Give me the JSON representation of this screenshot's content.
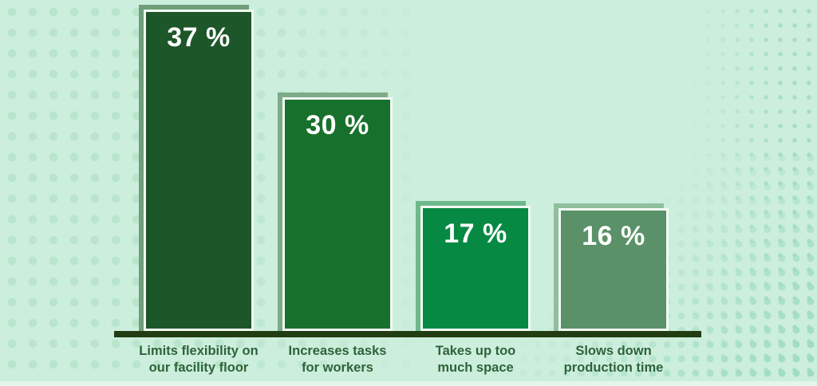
{
  "chart_data": {
    "type": "bar",
    "title": "",
    "unit": "%",
    "categories": [
      "Limits flexibility on our facility floor",
      "Increases tasks for workers",
      "Takes up too much space",
      "Slows down production time"
    ],
    "values": [
      37,
      30,
      17,
      16
    ],
    "bars": [
      {
        "value_label": "37 %",
        "line1": "Limits flexibility on",
        "line2": "our facility floor",
        "fill": "#1d5628",
        "shadow": "#6f9e7a"
      },
      {
        "value_label": "30 %",
        "line1": "Increases tasks",
        "line2": "for workers",
        "fill": "#17712c",
        "shadow": "#7cab87"
      },
      {
        "value_label": "17 %",
        "line1": "Takes up too",
        "line2": "much space",
        "fill": "#068943",
        "shadow": "#6db98c"
      },
      {
        "value_label": "16 %",
        "line1": "Slows down",
        "line2": "production time",
        "fill": "#5a9168",
        "shadow": "#8fbf9c"
      }
    ],
    "layout": {
      "grid": false,
      "legend": false,
      "value_label_position": "inside-top",
      "category_label_position": "below-axis",
      "ylim": [
        0,
        40
      ]
    },
    "palette": {
      "background": "#cceedd",
      "dot_pattern_left": "#b9e5cd",
      "dot_pattern_right": "#a5ddc3",
      "bar_border": "#f2faf3",
      "axis_line": "#213d11",
      "category_text": "#2e6339",
      "value_text": "#ffffff"
    }
  }
}
